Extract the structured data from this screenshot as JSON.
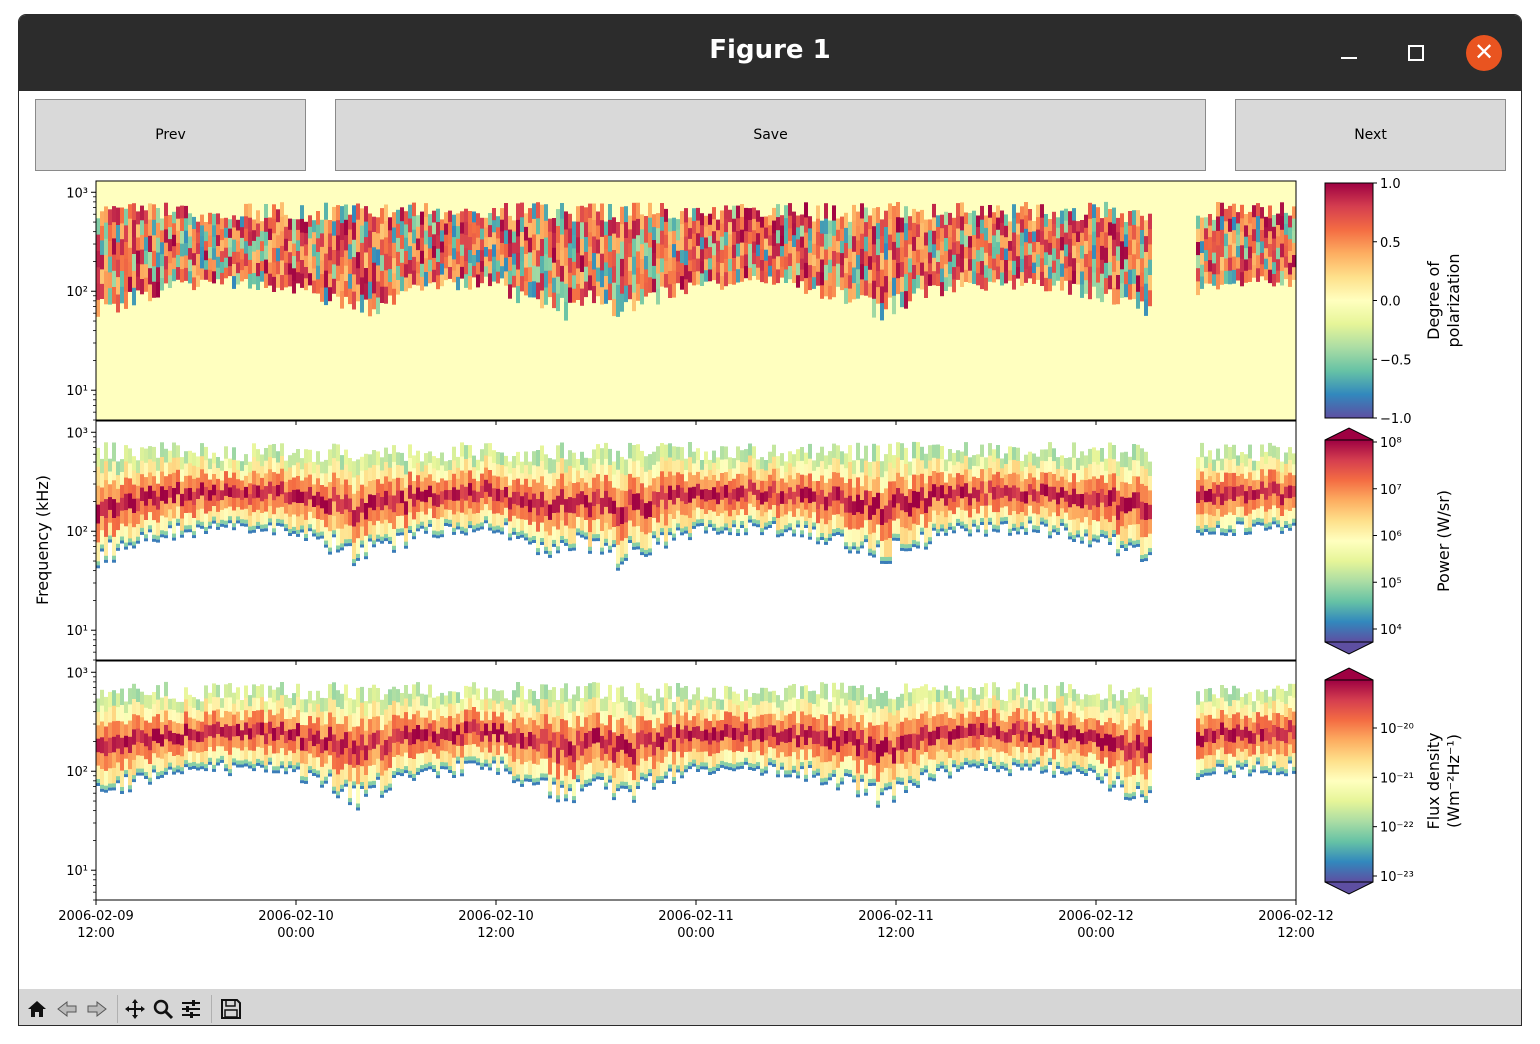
{
  "window": {
    "title": "Figure 1"
  },
  "buttons": {
    "prev": "Prev",
    "save": "Save",
    "next": "Next"
  },
  "colors": {
    "titlebar": "#2c2c2c",
    "close": "#e95420",
    "button_bg": "#d9d9d9",
    "toolbar_bg": "#d6d6d6",
    "colormap": "Spectral"
  },
  "toolbar": {
    "tools": [
      "home-icon",
      "back-icon",
      "forward-icon",
      "pan-icon",
      "zoom-icon",
      "configure-subplots-icon",
      "save-figure-icon"
    ]
  },
  "chart_data": {
    "type": "heatmap",
    "ylabel": "Frequency (kHz)",
    "y_scale": "log",
    "ylim": [
      5,
      1300
    ],
    "y_ticks": [
      "10¹",
      "10²",
      "10³"
    ],
    "x_ticks": [
      [
        "2006-02-09",
        "12:00"
      ],
      [
        "2006-02-10",
        "00:00"
      ],
      [
        "2006-02-10",
        "12:00"
      ],
      [
        "2006-02-11",
        "00:00"
      ],
      [
        "2006-02-11",
        "12:00"
      ],
      [
        "2006-02-12",
        "00:00"
      ],
      [
        "2006-02-12",
        "12:00"
      ]
    ],
    "xlim": [
      "2006-02-09 12:00",
      "2006-02-12 12:00"
    ],
    "panels": [
      {
        "quantity": "Degree of polarization",
        "colorbar_label": [
          "Degree of",
          "polarization"
        ],
        "colorbar_scale": "linear",
        "colorbar_range": [
          -1.0,
          1.0
        ],
        "colorbar_ticks": [
          "1.0",
          "0.5",
          "0.0",
          "−0.5",
          "−1.0"
        ],
        "colorbar_extend": "neither"
      },
      {
        "quantity": "Power (W/sr)",
        "colorbar_label": [
          "Power (W/sr)"
        ],
        "colorbar_scale": "log",
        "colorbar_ticks": [
          "10⁸",
          "10⁷",
          "10⁶",
          "10⁵",
          "10⁴"
        ],
        "colorbar_extend": "both"
      },
      {
        "quantity": "Flux density (Wm⁻²Hz⁻¹)",
        "colorbar_label": [
          "Flux density",
          "(Wm⁻²Hz⁻¹)"
        ],
        "colorbar_scale": "log",
        "colorbar_ticks": [
          "10⁻²⁰",
          "10⁻²¹",
          "10⁻²²",
          "10⁻²³"
        ],
        "colorbar_extend": "both"
      }
    ]
  }
}
